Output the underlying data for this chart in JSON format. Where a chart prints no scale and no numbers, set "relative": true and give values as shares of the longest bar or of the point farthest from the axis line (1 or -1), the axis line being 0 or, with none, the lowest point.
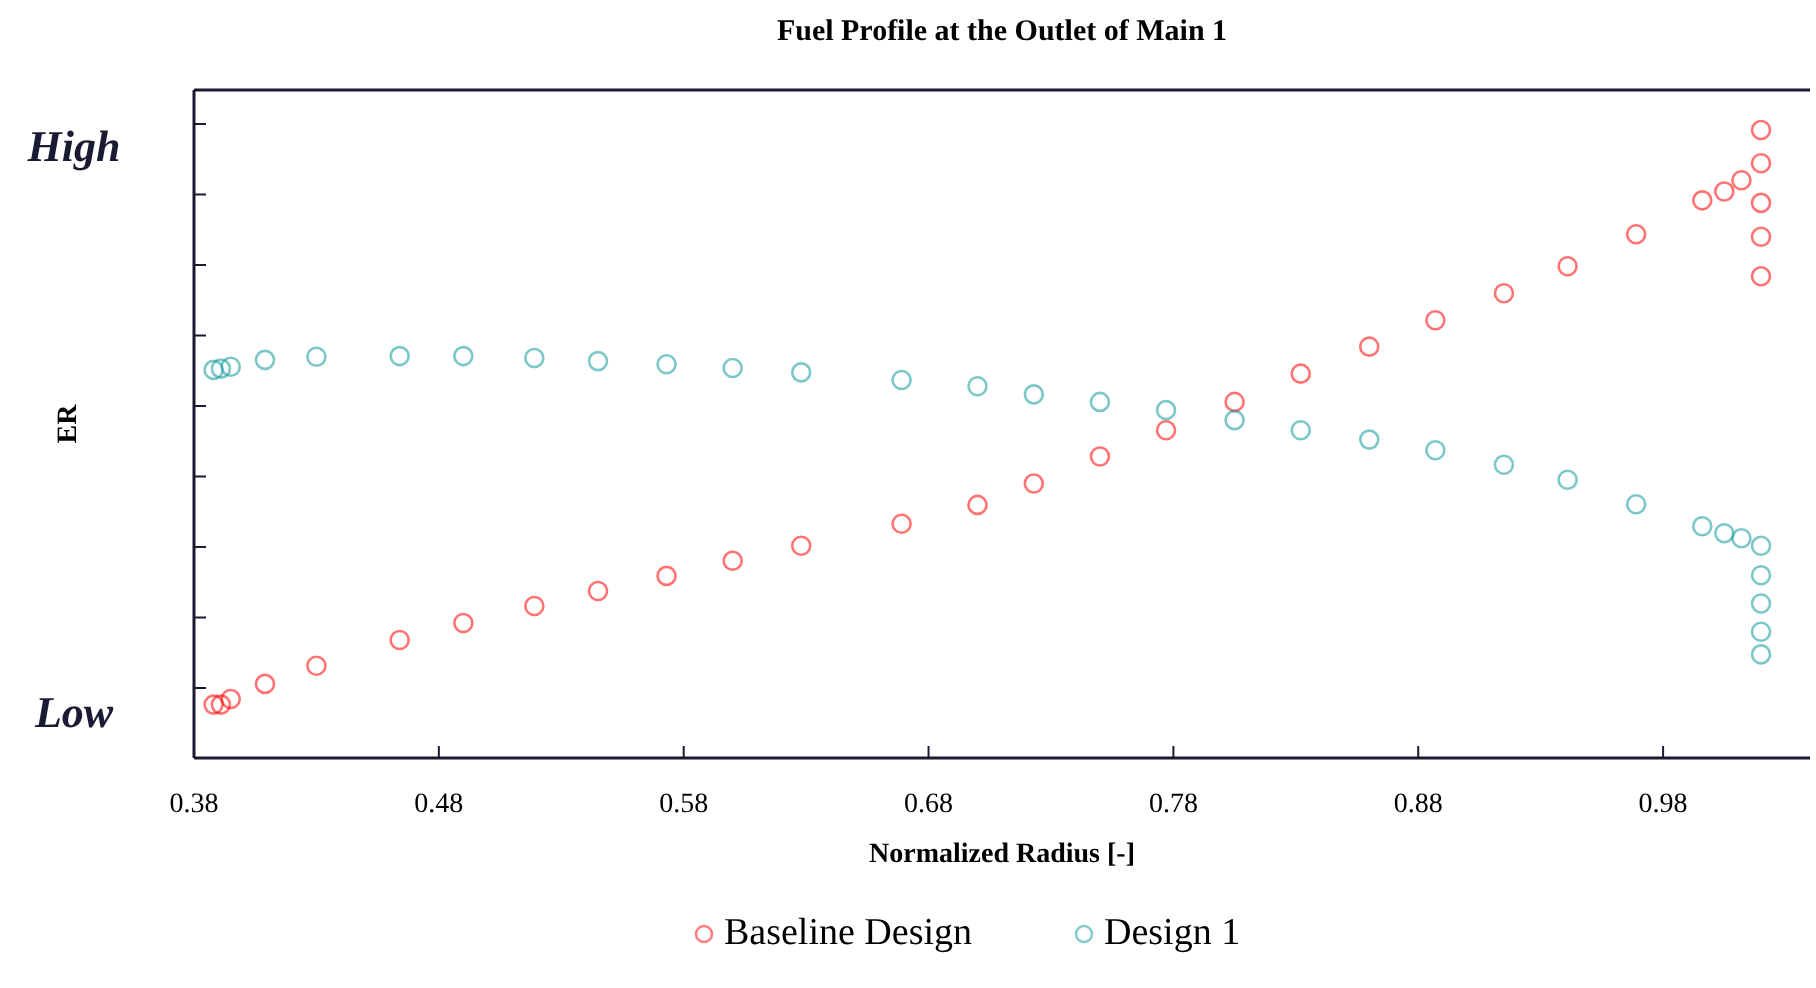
{
  "chart_data": {
    "type": "scatter",
    "title": "Fuel Profile at the Outlet of Main 1",
    "xlabel": "Normalized Radius [-]",
    "ylabel": "ER",
    "annotations": [
      "High",
      "Low"
    ],
    "xlim": [
      0.38,
      1.04
    ],
    "xticks": [
      0.38,
      0.48,
      0.58,
      0.68,
      0.78,
      0.88,
      0.98
    ],
    "relative": true,
    "marker": "circle",
    "legend": "bottom",
    "series": [
      {
        "name": "Baseline Design",
        "color": "#ff0000",
        "x": [
          0.388,
          0.391,
          0.395,
          0.409,
          0.43,
          0.464,
          0.49,
          0.519,
          0.545,
          0.573,
          0.6,
          0.628,
          0.669,
          0.7,
          0.723,
          0.75,
          0.777,
          0.805,
          0.832,
          0.86,
          0.887,
          0.915,
          0.941,
          0.969,
          0.996,
          1.005,
          1.012,
          1.02,
          1.02,
          1.02,
          1.02,
          1.02
        ],
        "values": [
          0.085,
          0.085,
          0.094,
          0.118,
          0.147,
          0.188,
          0.215,
          0.242,
          0.266,
          0.29,
          0.314,
          0.338,
          0.373,
          0.403,
          0.437,
          0.48,
          0.522,
          0.567,
          0.612,
          0.655,
          0.697,
          0.74,
          0.783,
          0.834,
          0.888,
          0.902,
          0.92,
          1,
          0.947,
          0.884,
          0.83,
          0.767
        ]
      },
      {
        "name": "Design 1",
        "color": "#10999a",
        "x": [
          0.388,
          0.391,
          0.395,
          0.409,
          0.43,
          0.464,
          0.49,
          0.519,
          0.545,
          0.573,
          0.6,
          0.628,
          0.669,
          0.7,
          0.723,
          0.75,
          0.777,
          0.805,
          0.832,
          0.86,
          0.887,
          0.915,
          0.941,
          0.969,
          0.996,
          1.005,
          1.012,
          1.02,
          1.02,
          1.02,
          1.02,
          1.02
        ],
        "values": [
          0.618,
          0.62,
          0.623,
          0.634,
          0.639,
          0.64,
          0.64,
          0.637,
          0.632,
          0.627,
          0.621,
          0.614,
          0.602,
          0.592,
          0.579,
          0.567,
          0.554,
          0.538,
          0.522,
          0.507,
          0.49,
          0.467,
          0.443,
          0.404,
          0.369,
          0.358,
          0.35,
          0.338,
          0.291,
          0.246,
          0.201,
          0.165
        ]
      }
    ]
  }
}
